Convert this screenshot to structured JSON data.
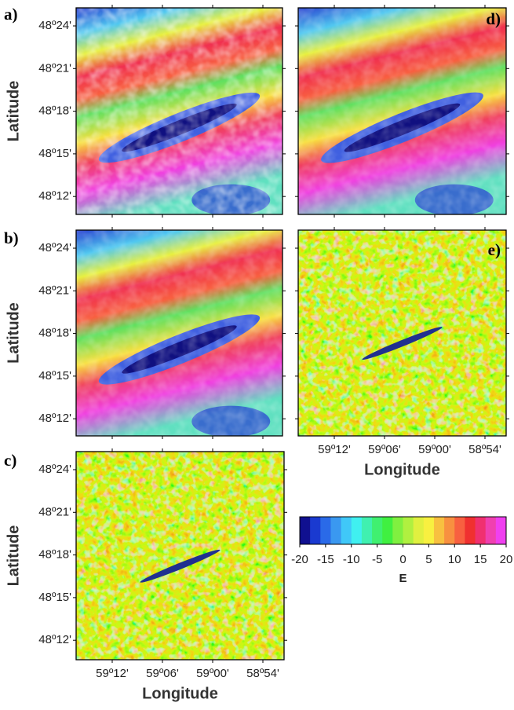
{
  "panels": [
    {
      "label": "a)"
    },
    {
      "label": "d)"
    },
    {
      "label": "b)"
    },
    {
      "label": "e)"
    },
    {
      "label": "c)"
    }
  ],
  "latitude_ticks": [
    "48º24'",
    "48º21'",
    "48º18'",
    "48º15'",
    "48º12'"
  ],
  "longitude_ticks": [
    "59º12'",
    "59º06'",
    "59º00'",
    "58º54'"
  ],
  "ylabel": "Latitude",
  "xlabel": "Longitude",
  "colorbar": {
    "lim": [
      -20,
      20
    ],
    "ticks": [
      -20,
      -15,
      -10,
      -5,
      0,
      5,
      10,
      15,
      20
    ],
    "label": "E",
    "colors": [
      "#101090",
      "#1a3ad0",
      "#2a6ae8",
      "#3a98f0",
      "#40c8f8",
      "#40f0f0",
      "#40f0b0",
      "#40f070",
      "#40f040",
      "#80f040",
      "#b0f040",
      "#e0f040",
      "#f8f040",
      "#f8c040",
      "#f89040",
      "#f86040",
      "#f03030",
      "#f03070",
      "#f040b0",
      "#f040f0"
    ]
  }
}
